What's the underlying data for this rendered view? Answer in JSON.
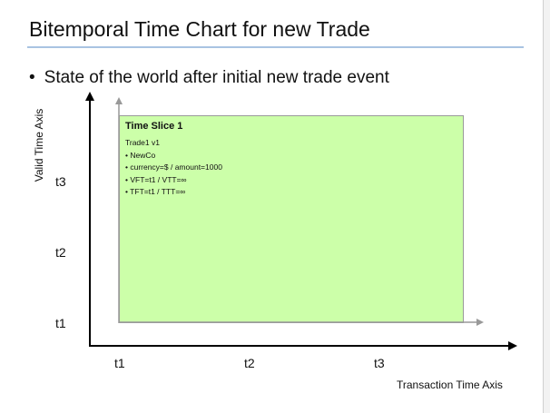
{
  "slide": {
    "title": "Bitemporal Time Chart for new Trade",
    "bullet": "State of the world after initial new trade event"
  },
  "chart": {
    "y_axis_label": "Valid Time Axis",
    "x_axis_label": "Transaction Time Axis",
    "y_ticks": [
      "t3",
      "t2",
      "t1"
    ],
    "x_ticks": [
      "t1",
      "t2",
      "t3"
    ]
  },
  "time_slice": {
    "title": "Time Slice 1",
    "lines": [
      "Trade1 v1",
      "• NewCo",
      "• currency=$ / amount=1000",
      "• VFT=t1 / VTT=∞",
      "• TFT=t1 / TTT=∞"
    ],
    "fill_color": "#ccffa9"
  },
  "colors": {
    "title_rule": "#a9c4e2",
    "axis": "#000000",
    "slice_arrows": "#999999"
  }
}
